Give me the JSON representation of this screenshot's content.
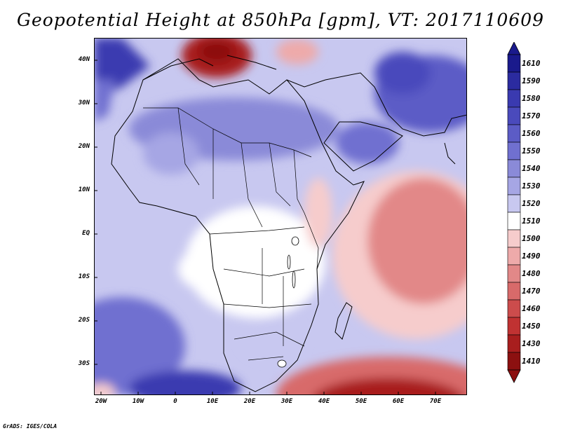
{
  "title": "Geopotential Height at 850hPa [gpm], VT: 2017110609",
  "credit": "GrADS: IGES/COLA",
  "map": {
    "region": "Africa",
    "variable": "Geopotential height at 850 hPa",
    "units": "gpm",
    "valid_time": "2017110609",
    "lon_range": [
      -25,
      80
    ],
    "lat_range": [
      -37,
      45
    ]
  },
  "lat_labels": [
    "40N",
    "30N",
    "20N",
    "10N",
    "EQ",
    "10S",
    "20S",
    "30S"
  ],
  "lon_labels": [
    "20W",
    "10W",
    "0",
    "10E",
    "20E",
    "30E",
    "40E",
    "50E",
    "60E",
    "70E"
  ],
  "colorbar": {
    "levels": [
      "1610",
      "1590",
      "1580",
      "1570",
      "1560",
      "1550",
      "1540",
      "1530",
      "1520",
      "1510",
      "1500",
      "1490",
      "1480",
      "1470",
      "1460",
      "1450",
      "1430",
      "1410"
    ],
    "colors": [
      "#1a1a8c",
      "#2b2ba0",
      "#3a3ab0",
      "#4a4abc",
      "#5c5cc6",
      "#7070d0",
      "#8a8ad8",
      "#a6a6e4",
      "#c8c8f0",
      "#ffffff",
      "#f6cccc",
      "#eeaaaa",
      "#e28888",
      "#d86a6a",
      "#cc4c4c",
      "#c03232",
      "#a81e1e",
      "#8c1010"
    ]
  }
}
